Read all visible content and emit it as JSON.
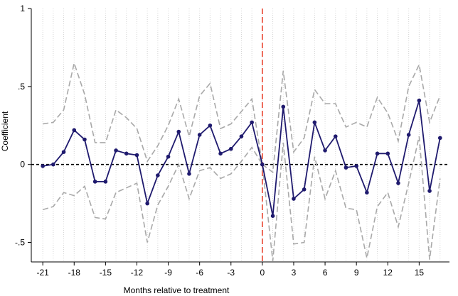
{
  "chart_data": {
    "type": "line",
    "title": "",
    "xlabel": "Months relative to treatment",
    "ylabel": "Coefficient",
    "xlim": [
      -21,
      17
    ],
    "ylim": [
      -0.5,
      1
    ],
    "x_ticks": [
      -21,
      -18,
      -15,
      -12,
      -9,
      -6,
      -3,
      0,
      3,
      6,
      9,
      12,
      15
    ],
    "x_tick_labels": [
      "-21",
      "-18",
      "-15",
      "-12",
      "-9",
      "-6",
      "-3",
      "0",
      "3",
      "6",
      "9",
      "12",
      "15"
    ],
    "y_ticks": [
      -0.5,
      0,
      0.5,
      1
    ],
    "y_tick_labels": [
      "-.5",
      "0",
      ".5",
      "1"
    ],
    "grid": "vertical dotted lines at every month",
    "x": [
      -21,
      -20,
      -19,
      -18,
      -17,
      -16,
      -15,
      -14,
      -13,
      -12,
      -11,
      -10,
      -9,
      -8,
      -7,
      -6,
      -5,
      -4,
      -3,
      -2,
      -1,
      0,
      1,
      2,
      3,
      4,
      5,
      6,
      7,
      8,
      9,
      10,
      11,
      12,
      13,
      14,
      15,
      16,
      17
    ],
    "series": [
      {
        "role": "estimate",
        "color": "#1f1a6e",
        "values": [
          -0.01,
          0.0,
          0.08,
          0.22,
          0.16,
          -0.11,
          -0.11,
          0.09,
          0.07,
          0.06,
          -0.25,
          -0.07,
          0.05,
          0.21,
          -0.06,
          0.19,
          0.25,
          0.07,
          0.1,
          0.18,
          0.27,
          0.0,
          -0.33,
          0.37,
          -0.22,
          -0.16,
          0.27,
          0.09,
          0.18,
          -0.02,
          -0.01,
          -0.18,
          0.07,
          0.07,
          -0.12,
          0.19,
          0.41,
          -0.17,
          0.17
        ]
      },
      {
        "role": "upper-ci",
        "color": "#a9a9a9",
        "values": [
          0.26,
          0.27,
          0.35,
          0.65,
          0.45,
          0.14,
          0.14,
          0.35,
          0.3,
          0.23,
          0.02,
          0.12,
          0.25,
          0.42,
          0.18,
          0.44,
          0.52,
          0.23,
          0.26,
          0.34,
          0.42,
          0.0,
          -0.05,
          0.6,
          0.08,
          0.17,
          0.48,
          0.39,
          0.39,
          0.24,
          0.27,
          0.24,
          0.43,
          0.33,
          0.15,
          0.5,
          0.64,
          0.27,
          0.44
        ]
      },
      {
        "role": "lower-ci",
        "color": "#a9a9a9",
        "values": [
          -0.29,
          -0.27,
          -0.18,
          -0.2,
          -0.14,
          -0.34,
          -0.35,
          -0.18,
          -0.15,
          -0.12,
          -0.5,
          -0.26,
          -0.14,
          0.0,
          -0.22,
          -0.04,
          -0.02,
          -0.09,
          -0.06,
          0.02,
          0.11,
          0.0,
          -0.62,
          0.14,
          -0.51,
          -0.5,
          0.05,
          -0.22,
          -0.04,
          -0.28,
          -0.29,
          -0.6,
          -0.27,
          -0.18,
          -0.4,
          -0.12,
          0.18,
          -0.61,
          -0.09
        ]
      }
    ],
    "reference_lines": {
      "horizontal": {
        "y": 0,
        "color": "#000000",
        "style": "dashed"
      },
      "vertical": {
        "x": 0,
        "color": "#e8412c",
        "style": "dashed"
      }
    }
  }
}
